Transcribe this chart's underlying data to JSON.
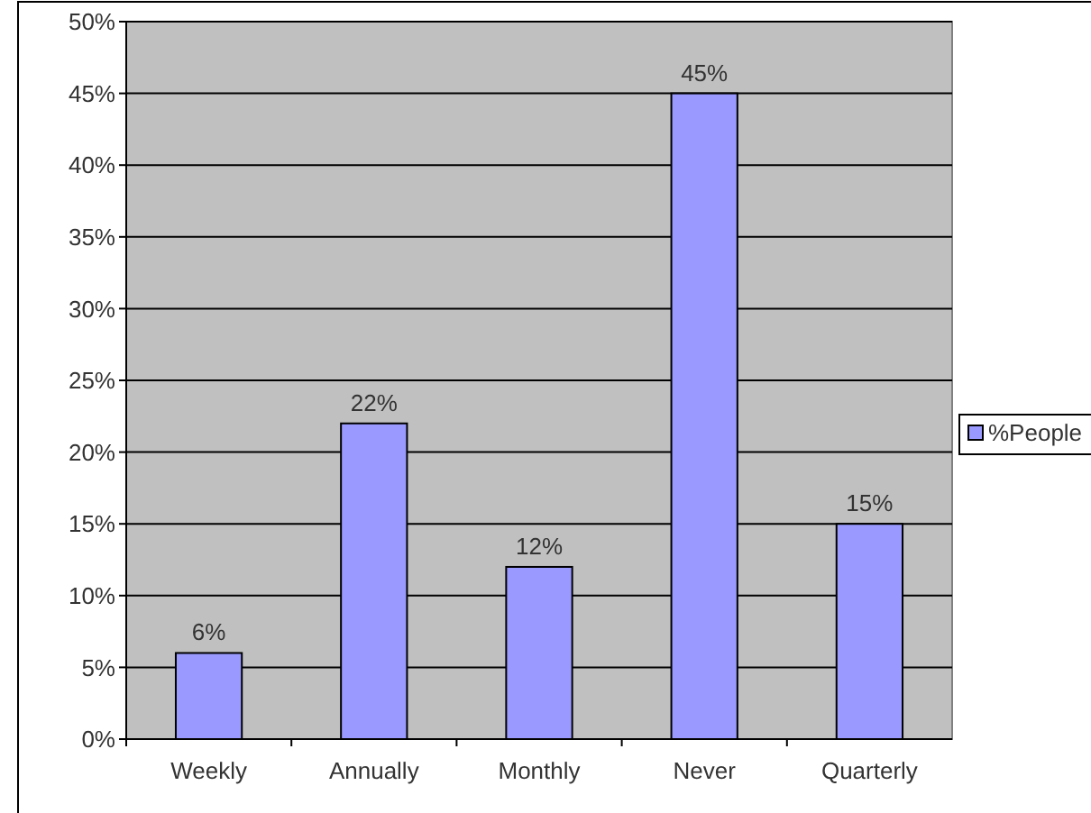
{
  "chart_data": {
    "type": "bar",
    "categories": [
      "Weekly",
      "Annually",
      "Monthly",
      "Never",
      "Quarterly"
    ],
    "series": [
      {
        "name": "%People",
        "color": "#9999ff",
        "values": [
          6,
          22,
          12,
          45,
          15
        ],
        "value_labels": [
          "6%",
          "22%",
          "12%",
          "45%",
          "15%"
        ]
      }
    ],
    "ylim": [
      0,
      50
    ],
    "yticks": [
      {
        "value": 0,
        "label": "0%"
      },
      {
        "value": 5,
        "label": "5%"
      },
      {
        "value": 10,
        "label": "10%"
      },
      {
        "value": 15,
        "label": "15%"
      },
      {
        "value": 20,
        "label": "20%"
      },
      {
        "value": 25,
        "label": "25%"
      },
      {
        "value": 30,
        "label": "30%"
      },
      {
        "value": 35,
        "label": "35%"
      },
      {
        "value": 40,
        "label": "40%"
      },
      {
        "value": 45,
        "label": "45%"
      },
      {
        "value": 50,
        "label": "50%"
      }
    ],
    "grid": "y",
    "legend": "right"
  }
}
